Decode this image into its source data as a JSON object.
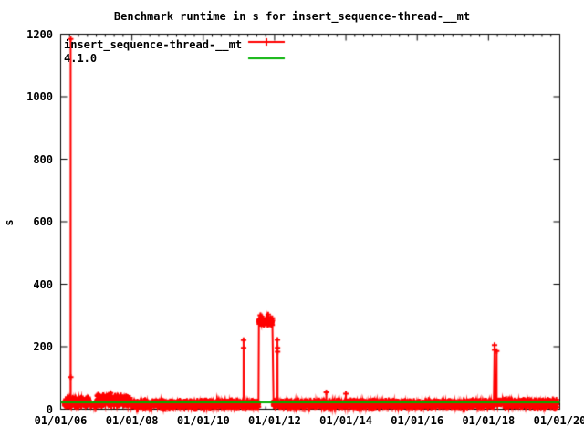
{
  "chart_data": {
    "type": "line",
    "title": "Benchmark runtime in s for insert_sequence-thread-__mt",
    "ylabel": "s",
    "background_color": "#ffffff",
    "border_color": "#000000",
    "legend_position": "top-left-inside",
    "x_axis": {
      "min_year": 2006,
      "max_year": 2020,
      "major_step_years": 2,
      "minor_step_years": 0.25,
      "labels": [
        {
          "year": 2006,
          "label": "01/01/06"
        },
        {
          "year": 2008,
          "label": "01/01/08"
        },
        {
          "year": 2010,
          "label": "01/01/10"
        },
        {
          "year": 2012,
          "label": "01/01/12"
        },
        {
          "year": 2014,
          "label": "01/01/14"
        },
        {
          "year": 2016,
          "label": "01/01/16"
        },
        {
          "year": 2018,
          "label": "01/01/18"
        },
        {
          "year": 2020,
          "label": "01/01/20"
        }
      ]
    },
    "y_axis": {
      "min": 0,
      "max": 1200,
      "step": 200,
      "labels": [
        {
          "value": 0,
          "label": "0"
        },
        {
          "value": 200,
          "label": "200"
        },
        {
          "value": 400,
          "label": "400"
        },
        {
          "value": 600,
          "label": "600"
        },
        {
          "value": 800,
          "label": "800"
        },
        {
          "value": 1000,
          "label": "1000"
        },
        {
          "value": 1200,
          "label": "1200"
        }
      ]
    },
    "seed": 7,
    "series": [
      {
        "name": "insert_sequence-thread-__mt",
        "color": "#ff0000",
        "marker": "plus",
        "style": "linespoints",
        "baseline_segments": [
          {
            "from": 2006.1,
            "to": 2006.8,
            "min": 5,
            "max": 40,
            "per_year": 260
          },
          {
            "from": 2006.8,
            "to": 2007.02,
            "min": 8,
            "max": 24,
            "per_year": 120
          },
          {
            "from": 2007.02,
            "to": 2007.95,
            "min": 8,
            "max": 48,
            "per_year": 300
          },
          {
            "from": 2007.95,
            "to": 2011.55,
            "min": 3,
            "max": 30,
            "per_year": 260
          },
          {
            "from": 2011.56,
            "to": 2011.94,
            "min": 268,
            "max": 293,
            "per_year": 280
          },
          {
            "from": 2011.97,
            "to": 2018.15,
            "min": 3,
            "max": 30,
            "per_year": 260
          },
          {
            "from": 2018.18,
            "to": 2018.45,
            "min": 13,
            "max": 33,
            "per_year": 260
          },
          {
            "from": 2018.45,
            "to": 2019.92,
            "min": 3,
            "max": 33,
            "per_year": 290
          }
        ],
        "outliers": [
          {
            "x": 2006.28,
            "values": [
              1185,
              103
            ]
          },
          {
            "x": 2007.4,
            "values": [
              52
            ]
          },
          {
            "x": 2011.13,
            "values": [
              221,
              196
            ]
          },
          {
            "x": 2011.6,
            "values": [
              301
            ]
          },
          {
            "x": 2011.82,
            "values": [
              303
            ]
          },
          {
            "x": 2012.08,
            "values": [
              222,
              196,
              184
            ]
          },
          {
            "x": 2013.45,
            "values": [
              54
            ]
          },
          {
            "x": 2014.0,
            "values": [
              50
            ]
          },
          {
            "x": 2018.17,
            "values": [
              205,
              190
            ]
          },
          {
            "x": 2018.23,
            "values": [
              186
            ]
          }
        ]
      },
      {
        "name": "4.1.0",
        "color": "#00b000",
        "style": "line",
        "value": 22
      }
    ]
  }
}
